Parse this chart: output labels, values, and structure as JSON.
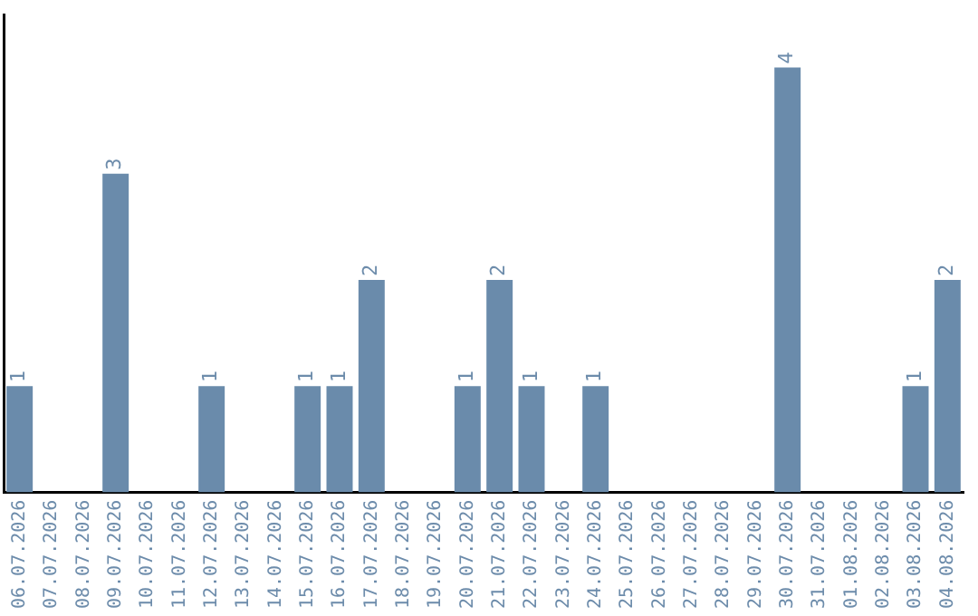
{
  "chart_data": {
    "type": "bar",
    "categories": [
      "06.07.2026",
      "07.07.2026",
      "08.07.2026",
      "09.07.2026",
      "10.07.2026",
      "11.07.2026",
      "12.07.2026",
      "13.07.2026",
      "14.07.2026",
      "15.07.2026",
      "16.07.2026",
      "17.07.2026",
      "18.07.2026",
      "19.07.2026",
      "20.07.2026",
      "21.07.2026",
      "22.07.2026",
      "23.07.2026",
      "24.07.2026",
      "25.07.2026",
      "26.07.2026",
      "27.07.2026",
      "28.07.2026",
      "29.07.2026",
      "30.07.2026",
      "31.07.2026",
      "01.08.2026",
      "02.08.2026",
      "03.08.2026",
      "04.08.2026"
    ],
    "values": [
      1,
      0,
      0,
      3,
      0,
      0,
      1,
      0,
      0,
      1,
      1,
      2,
      0,
      0,
      1,
      2,
      1,
      0,
      1,
      0,
      0,
      0,
      0,
      0,
      4,
      0,
      0,
      0,
      1,
      2
    ],
    "value_labels": [
      "1",
      null,
      null,
      "3",
      null,
      null,
      "1",
      null,
      null,
      "1",
      "1",
      "2",
      null,
      null,
      "1",
      "2",
      "1",
      null,
      "1",
      null,
      null,
      null,
      null,
      null,
      "4",
      null,
      null,
      null,
      "1",
      "2"
    ],
    "color": "#6a8bab",
    "grid": false,
    "tick_labels": "x"
  }
}
